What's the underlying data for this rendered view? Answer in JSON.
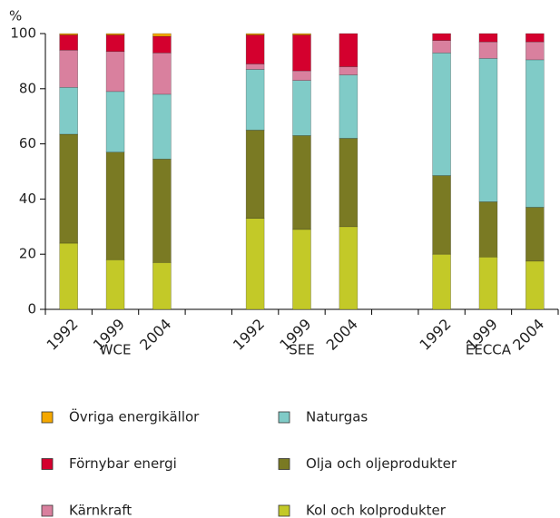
{
  "chart_data": {
    "type": "stacked_bar",
    "y_axis_label": "%",
    "categories": [
      "1992",
      "1999",
      "2004",
      null,
      "1992",
      "1999",
      "2004",
      null,
      "1992",
      "1999",
      "2004"
    ],
    "group_labels": [
      "WCE",
      "SEE",
      "EECCA"
    ],
    "ylim": [
      0,
      100
    ],
    "yticks": [
      0,
      20,
      40,
      60,
      80,
      100
    ],
    "series": [
      {
        "name": "Kol och kolprodukter",
        "color": "#c3c928",
        "values": [
          24,
          18,
          17,
          null,
          33,
          29,
          30,
          null,
          20,
          19,
          17.5
        ]
      },
      {
        "name": "Olja och oljeprodukter",
        "color": "#7a7a23",
        "values": [
          39.5,
          39,
          37.5,
          null,
          32,
          34,
          32,
          null,
          28.5,
          20,
          19.5
        ]
      },
      {
        "name": "Naturgas",
        "color": "#80cbc7",
        "values": [
          17,
          22,
          23.5,
          null,
          22,
          20,
          23,
          null,
          44.5,
          52,
          53.5
        ]
      },
      {
        "name": "Kärnkraft",
        "color": "#d9809e",
        "values": [
          13.5,
          14.5,
          15,
          null,
          2,
          3.5,
          3,
          null,
          4.5,
          6,
          6.5
        ]
      },
      {
        "name": "Förnybar energi",
        "color": "#d4002e",
        "values": [
          5.5,
          6,
          6,
          null,
          10.5,
          13,
          12,
          null,
          2.5,
          3,
          3
        ]
      },
      {
        "name": "Övriga energikällor",
        "color": "#f5a800",
        "values": [
          0.5,
          0.5,
          1,
          null,
          0.5,
          0.5,
          0,
          null,
          0,
          0,
          0
        ]
      }
    ]
  }
}
